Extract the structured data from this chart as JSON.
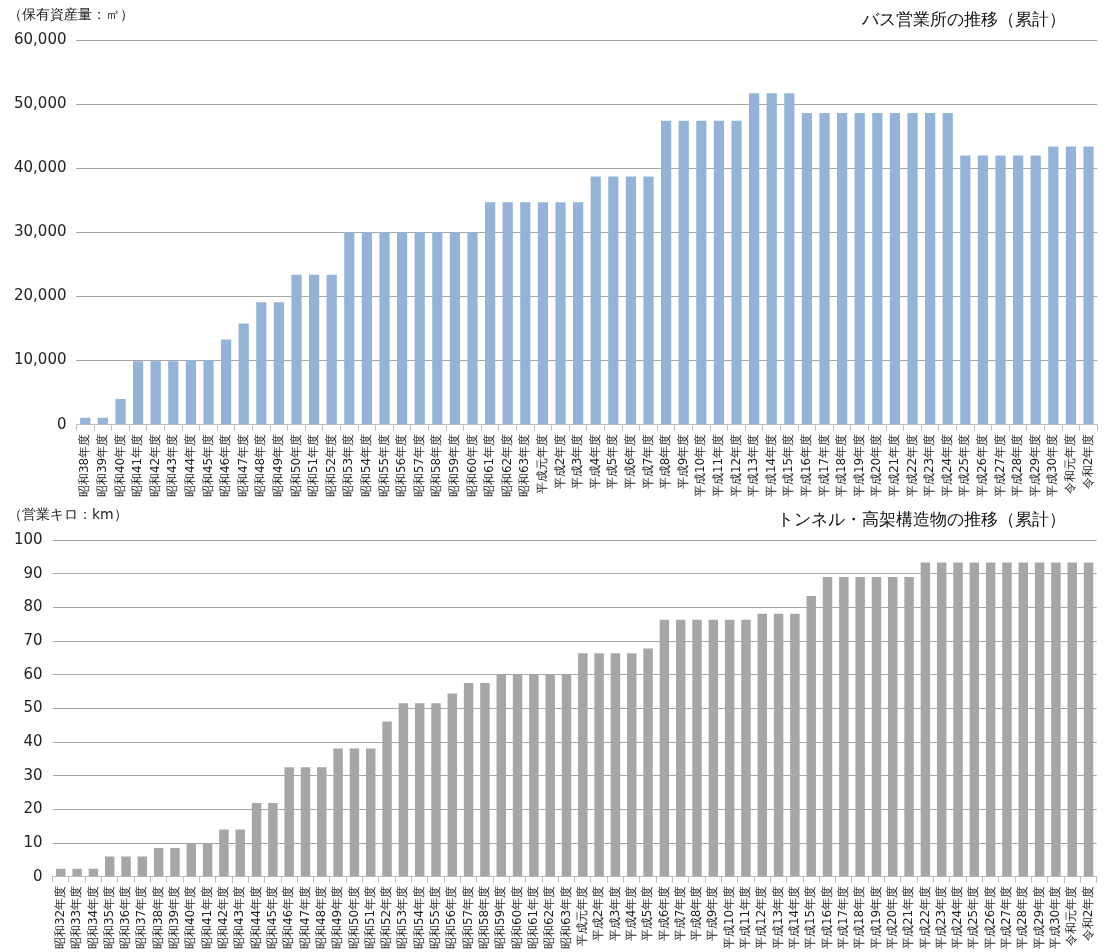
{
  "chart_data": [
    {
      "type": "bar",
      "title": "バス営業所の推移（累計）",
      "ylabel": "（保有資産量：㎡）",
      "categories": [
        "昭和38年度",
        "昭和39年度",
        "昭和40年度",
        "昭和41年度",
        "昭和42年度",
        "昭和43年度",
        "昭和44年度",
        "昭和45年度",
        "昭和46年度",
        "昭和47年度",
        "昭和48年度",
        "昭和49年度",
        "昭和50年度",
        "昭和51年度",
        "昭和52年度",
        "昭和53年度",
        "昭和54年度",
        "昭和55年度",
        "昭和56年度",
        "昭和57年度",
        "昭和58年度",
        "昭和59年度",
        "昭和60年度",
        "昭和61年度",
        "昭和62年度",
        "昭和63年度",
        "平成元年度",
        "平成2年度",
        "平成3年度",
        "平成4年度",
        "平成5年度",
        "平成6年度",
        "平成7年度",
        "平成8年度",
        "平成9年度",
        "平成10年度",
        "平成11年度",
        "平成12年度",
        "平成13年度",
        "平成14年度",
        "平成15年度",
        "平成16年度",
        "平成17年度",
        "平成18年度",
        "平成19年度",
        "平成20年度",
        "平成21年度",
        "平成22年度",
        "平成23年度",
        "平成24年度",
        "平成25年度",
        "平成26年度",
        "平成27年度",
        "平成28年度",
        "平成29年度",
        "平成30年度",
        "令和元年度",
        "令和2年度"
      ],
      "values": [
        1100,
        1100,
        4000,
        9900,
        9900,
        9900,
        10100,
        10100,
        13300,
        15800,
        19100,
        19100,
        23400,
        23400,
        23400,
        30000,
        30000,
        30000,
        30000,
        30000,
        30000,
        30000,
        30000,
        34700,
        34700,
        34700,
        34700,
        34700,
        34700,
        38700,
        38700,
        38700,
        38700,
        47400,
        47400,
        47400,
        47400,
        47400,
        51700,
        51700,
        51700,
        48600,
        48600,
        48600,
        48600,
        48600,
        48600,
        48600,
        48600,
        48600,
        42000,
        42000,
        42000,
        42000,
        42000,
        43400,
        43400,
        43400
      ],
      "color": "#95b3d7",
      "ylim": [
        0,
        60000
      ],
      "yticks": [
        0,
        {
          "value": 10000,
          "label": "10,000"
        },
        {
          "value": 20000,
          "label": "20,000"
        },
        {
          "value": 30000,
          "label": "30,000"
        },
        {
          "value": 40000,
          "label": "40,000"
        },
        {
          "value": 50000,
          "label": "50,000"
        },
        {
          "value": 60000,
          "label": "60,000"
        }
      ],
      "grid": "y"
    },
    {
      "type": "bar",
      "title": "トンネル・高架構造物の推移（累計）",
      "ylabel": "（営業キロ：km）",
      "categories": [
        "昭和32年度",
        "昭和33年度",
        "昭和34年度",
        "昭和35年度",
        "昭和36年度",
        "昭和37年度",
        "昭和38年度",
        "昭和39年度",
        "昭和40年度",
        "昭和41年度",
        "昭和42年度",
        "昭和43年度",
        "昭和44年度",
        "昭和45年度",
        "昭和46年度",
        "昭和47年度",
        "昭和48年度",
        "昭和49年度",
        "昭和50年度",
        "昭和51年度",
        "昭和52年度",
        "昭和53年度",
        "昭和54年度",
        "昭和55年度",
        "昭和56年度",
        "昭和57年度",
        "昭和58年度",
        "昭和59年度",
        "昭和60年度",
        "昭和61年度",
        "昭和62年度",
        "昭和63年度",
        "平成元年度",
        "平成2年度",
        "平成3年度",
        "平成4年度",
        "平成5年度",
        "平成6年度",
        "平成7年度",
        "平成8年度",
        "平成9年度",
        "平成10年度",
        "平成11年度",
        "平成12年度",
        "平成13年度",
        "平成14年度",
        "平成15年度",
        "平成16年度",
        "平成17年度",
        "平成18年度",
        "平成19年度",
        "平成20年度",
        "平成21年度",
        "平成22年度",
        "平成23年度",
        "平成24年度",
        "平成25年度",
        "平成26年度",
        "平成27年度",
        "平成28年度",
        "平成29年度",
        "平成30年度",
        "令和元年度",
        "令和2年度"
      ],
      "values": [
        2.4,
        2.4,
        2.4,
        6,
        6,
        6,
        8.5,
        8.5,
        9.8,
        9.8,
        14,
        14,
        21.9,
        21.9,
        32.5,
        32.5,
        32.5,
        38.1,
        38.1,
        38.1,
        46.1,
        51.5,
        51.5,
        51.5,
        54.4,
        57.5,
        57.5,
        60,
        60,
        60,
        60,
        60,
        66.4,
        66.4,
        66.4,
        66.4,
        67.8,
        76.3,
        76.3,
        76.3,
        76.3,
        76.3,
        76.3,
        78.1,
        78.1,
        78.1,
        83.4,
        89,
        89,
        89,
        89,
        89,
        89,
        93.3,
        93.3,
        93.3,
        93.3,
        93.3,
        93.3,
        93.3,
        93.3,
        93.3,
        93.3,
        93.3
      ],
      "color": "#a6a6a6",
      "ylim": [
        0,
        100
      ],
      "yticks": [
        0,
        10,
        20,
        30,
        40,
        50,
        60,
        70,
        80,
        90,
        100
      ],
      "grid": "y"
    }
  ]
}
